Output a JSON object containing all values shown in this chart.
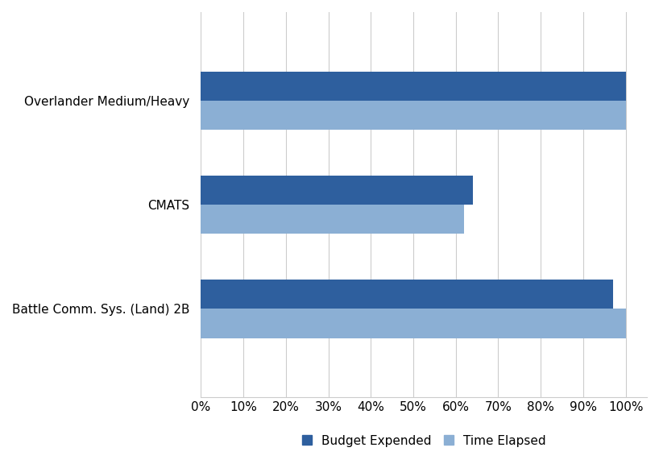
{
  "categories": [
    "Battle Comm. Sys. (Land) 2B",
    "CMATS",
    "Overlander Medium/Heavy"
  ],
  "budget_expended": [
    97,
    64,
    100
  ],
  "time_elapsed": [
    100,
    62,
    100
  ],
  "bar_color_budget": "#2E5F9E",
  "bar_color_time": "#8BAFD4",
  "background_color": "#ffffff",
  "grid_color": "#cccccc",
  "xlim": [
    0,
    105
  ],
  "xtick_values": [
    0,
    10,
    20,
    30,
    40,
    50,
    60,
    70,
    80,
    90,
    100
  ],
  "legend_labels": [
    "Budget Expended",
    "Time Elapsed"
  ],
  "bar_height": 0.28,
  "figsize": [
    8.18,
    5.71
  ],
  "dpi": 100
}
